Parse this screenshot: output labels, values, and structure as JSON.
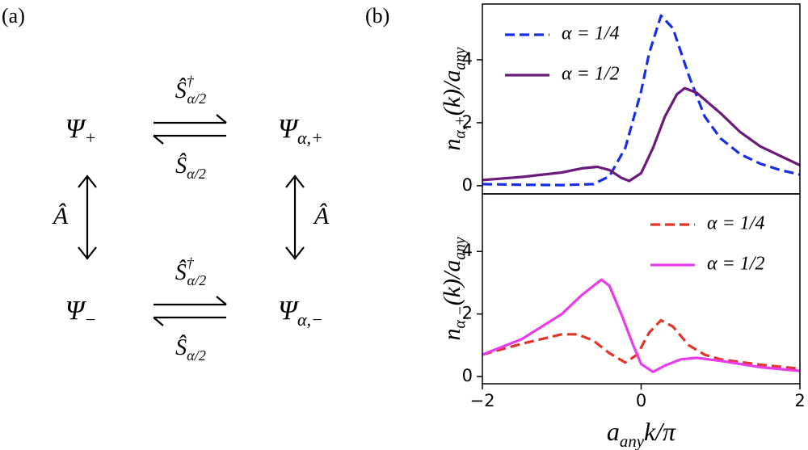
{
  "panel_labels": [
    "(a)",
    "(b)"
  ],
  "diagram": {
    "nodes": [
      [
        {
          "text": "Ψ"
        },
        {
          "text": "+",
          "pos": "sub"
        }
      ],
      [
        {
          "text": "Ψ"
        },
        {
          "text": "α,+",
          "pos": "sub"
        }
      ],
      [
        {
          "text": "Ψ"
        },
        {
          "text": "−",
          "pos": "sub"
        }
      ],
      [
        {
          "text": "Ψ"
        },
        {
          "text": "α,−",
          "pos": "sub"
        }
      ]
    ],
    "forward_labels": [
      [
        {
          "text": "Ŝ"
        },
        {
          "text": "†",
          "pos": "sup"
        },
        {
          "text": "α/2",
          "pos": "sub"
        }
      ],
      [
        {
          "text": "Ŝ"
        },
        {
          "text": "†",
          "pos": "sup"
        },
        {
          "text": "α/2",
          "pos": "sub"
        }
      ]
    ],
    "backward_labels": [
      [
        {
          "text": "Ŝ"
        },
        {
          "text": "α/2",
          "pos": "sub"
        }
      ],
      [
        {
          "text": "Ŝ"
        },
        {
          "text": "α/2",
          "pos": "sub"
        }
      ]
    ],
    "vertical_labels": [
      [
        {
          "text": "Â"
        }
      ],
      [
        {
          "text": "Â"
        }
      ]
    ]
  },
  "chart_data": [
    {
      "type": "line",
      "y_label": [
        {
          "text": "n"
        },
        {
          "text": "α,+",
          "pos": "sub"
        },
        {
          "text": "(k)/a"
        },
        {
          "text": "any",
          "pos": "sub"
        }
      ],
      "xlim": [
        -2,
        2
      ],
      "ylim": [
        -0.26,
        5.77
      ],
      "yticks": [
        0,
        2,
        4
      ],
      "legend": "upper left",
      "series": [
        {
          "name": "α = 1/4",
          "color": "#1a2de6",
          "dashed": true,
          "x": [
            -2,
            -1.5,
            -1,
            -0.6,
            -0.4,
            -0.2,
            0,
            0.1,
            0.25,
            0.4,
            0.6,
            0.8,
            1.0,
            1.25,
            1.5,
            1.75,
            2
          ],
          "values": [
            0.05,
            0.03,
            0.02,
            0.05,
            0.3,
            1.2,
            3.0,
            4.2,
            5.4,
            5.0,
            3.5,
            2.2,
            1.5,
            1.0,
            0.7,
            0.5,
            0.35
          ]
        },
        {
          "name": "α = 1/2",
          "color": "#6a1a7a",
          "dashed": false,
          "x": [
            -2,
            -1.5,
            -1,
            -0.75,
            -0.55,
            -0.4,
            -0.25,
            -0.15,
            0,
            0.15,
            0.3,
            0.45,
            0.55,
            0.7,
            1.0,
            1.25,
            1.5,
            1.75,
            2
          ],
          "values": [
            0.18,
            0.28,
            0.42,
            0.55,
            0.6,
            0.5,
            0.25,
            0.15,
            0.4,
            1.2,
            2.2,
            2.9,
            3.1,
            2.95,
            2.3,
            1.7,
            1.25,
            0.95,
            0.65
          ]
        }
      ]
    },
    {
      "type": "line",
      "y_label": [
        {
          "text": "n"
        },
        {
          "text": "α,−",
          "pos": "sub"
        },
        {
          "text": "(k)/a"
        },
        {
          "text": "any",
          "pos": "sub"
        }
      ],
      "x_label": [
        {
          "text": "a"
        },
        {
          "text": "any",
          "pos": "sub"
        },
        {
          "text": "k/π"
        }
      ],
      "xlim": [
        -2,
        2
      ],
      "xticks": [
        {
          "value": -2,
          "label": "−2"
        },
        0,
        2
      ],
      "ylim": [
        -0.23,
        5.84
      ],
      "yticks": [
        0,
        2,
        4
      ],
      "legend": "upper right",
      "series": [
        {
          "name": "α = 1/4",
          "color": "#e0352a",
          "dashed": true,
          "x": [
            -2,
            -1.5,
            -1,
            -0.8,
            -0.6,
            -0.4,
            -0.2,
            -0.05,
            0.1,
            0.25,
            0.4,
            0.6,
            0.8,
            1.0,
            1.5,
            2
          ],
          "values": [
            0.7,
            1.05,
            1.35,
            1.35,
            1.15,
            0.75,
            0.45,
            0.7,
            1.4,
            1.8,
            1.6,
            1.0,
            0.7,
            0.55,
            0.38,
            0.25
          ]
        },
        {
          "name": "α = 1/2",
          "color": "#e83ce8",
          "dashed": false,
          "x": [
            -2,
            -1.5,
            -1,
            -0.75,
            -0.5,
            -0.4,
            -0.25,
            -0.1,
            0,
            0.15,
            0.3,
            0.5,
            0.7,
            1.0,
            1.5,
            2
          ],
          "values": [
            0.7,
            1.2,
            2.0,
            2.6,
            3.1,
            2.9,
            2.0,
            1.0,
            0.4,
            0.15,
            0.35,
            0.55,
            0.6,
            0.5,
            0.3,
            0.18
          ]
        }
      ]
    }
  ]
}
